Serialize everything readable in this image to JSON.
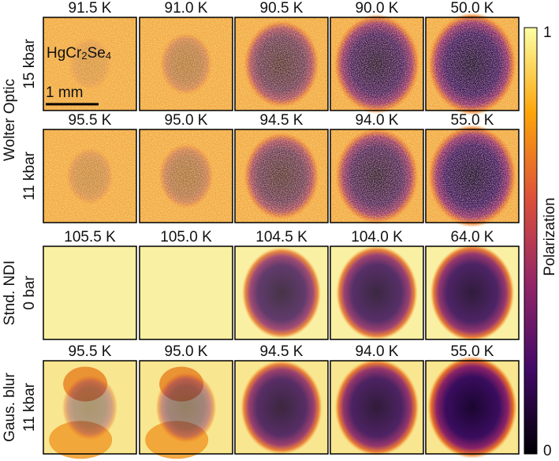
{
  "rows": [
    {
      "group": "Wolter Optic",
      "condition": "15 kbar",
      "temperatures": [
        "91.5 K",
        "91.0 K",
        "90.5 K",
        "90.0 K",
        "50.0 K"
      ]
    },
    {
      "condition": "11 kbar",
      "temperatures": [
        "95.5 K",
        "95.0 K",
        "94.5 K",
        "94.0 K",
        "55.0 K"
      ]
    },
    {
      "group": "Stnd. NDI",
      "condition": "0 bar",
      "temperatures": [
        "105.5 K",
        "105.0 K",
        "104.5 K",
        "104.0 K",
        "64.0 K"
      ]
    },
    {
      "group": "Gaus. blur",
      "condition": "11 kbar",
      "temperatures": [
        "95.5 K",
        "95.0 K",
        "94.5 K",
        "94.0 K",
        "55.0 K"
      ]
    }
  ],
  "annotations": {
    "compound": [
      "HgCr",
      "2",
      "Se",
      "4"
    ],
    "scale_bar": "1 mm"
  },
  "colorbar": {
    "label": "Polarization",
    "ticks": [
      "1",
      "0"
    ]
  }
}
